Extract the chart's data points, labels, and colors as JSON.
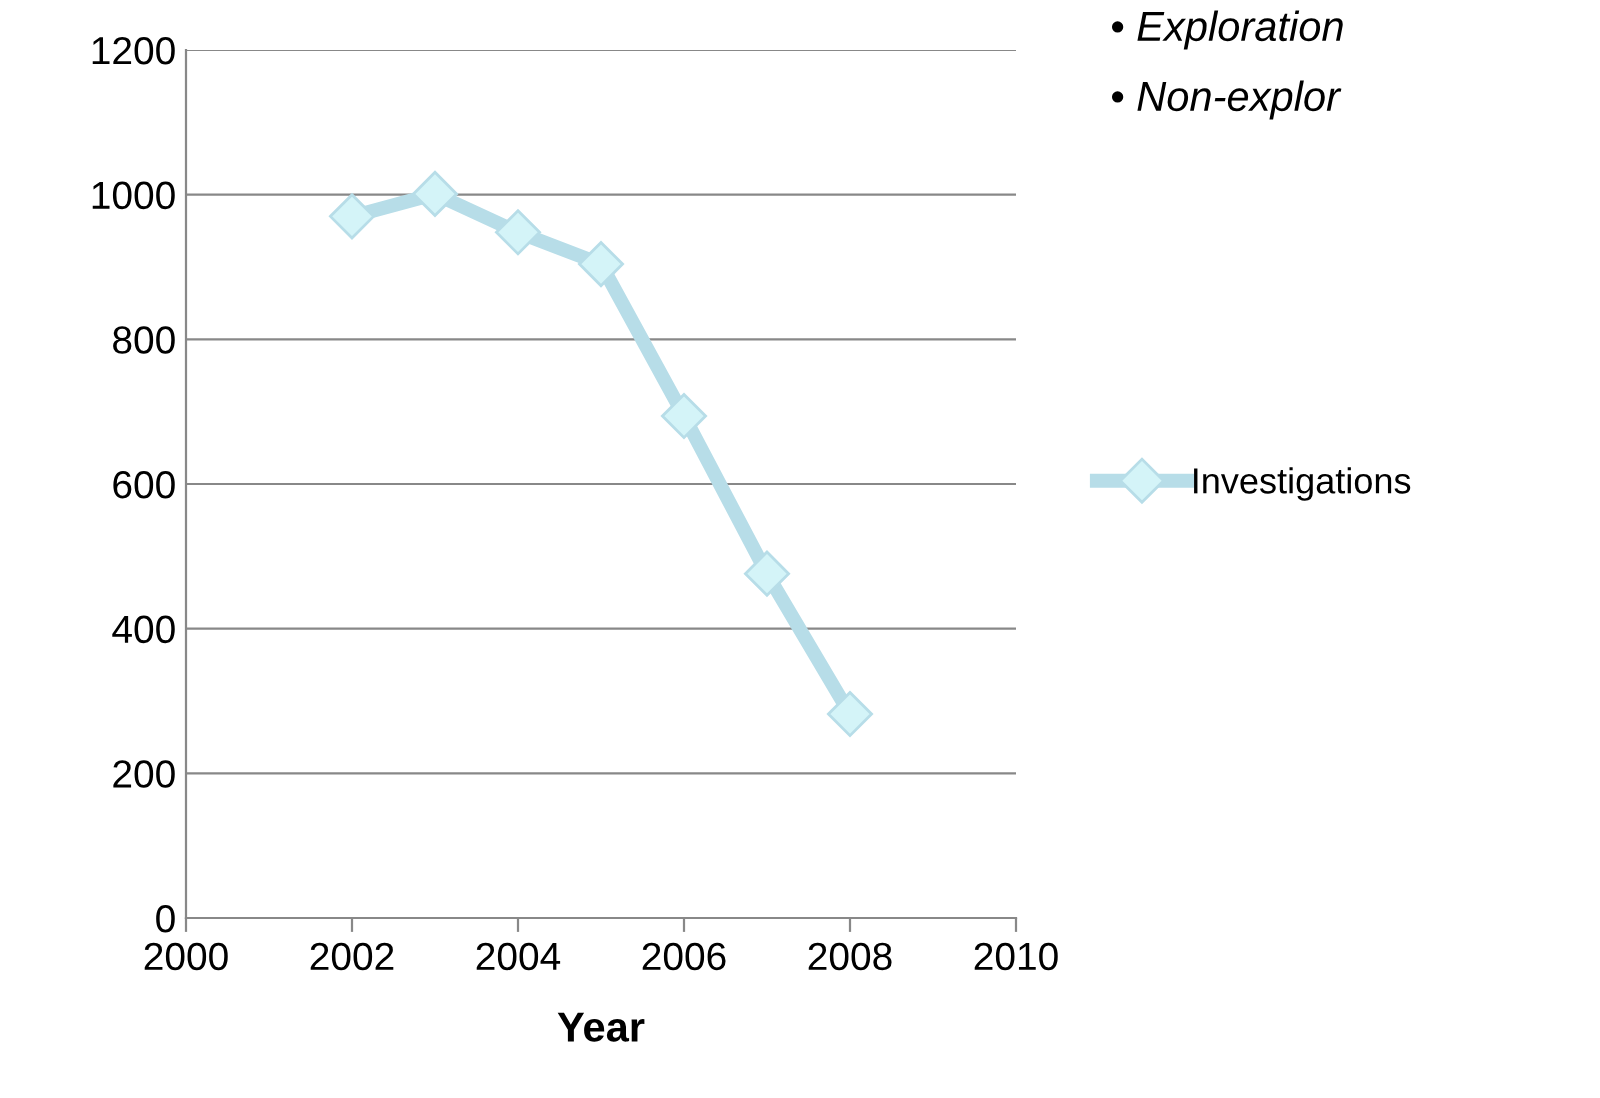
{
  "chart_data": {
    "type": "line",
    "xlabel": "Year",
    "x": [
      2002,
      2003,
      2004,
      2005,
      2006,
      2007,
      2008
    ],
    "series": [
      {
        "name": "Investigations",
        "color": "#b7dde8",
        "values": [
          970,
          1001,
          948,
          904,
          694,
          476,
          282
        ]
      }
    ],
    "xlim": [
      2000,
      2010
    ],
    "xticks": [
      2000,
      2002,
      2004,
      2006,
      2008,
      2010
    ],
    "ylim": [
      0,
      1200
    ],
    "yticks": [
      0,
      200,
      400,
      600,
      800,
      1000,
      1200
    ],
    "grid": "y",
    "legend": "right",
    "marker": "diamond",
    "line_style": "solid",
    "annotations": [
      "• Exploration",
      "• Non-explor"
    ]
  }
}
